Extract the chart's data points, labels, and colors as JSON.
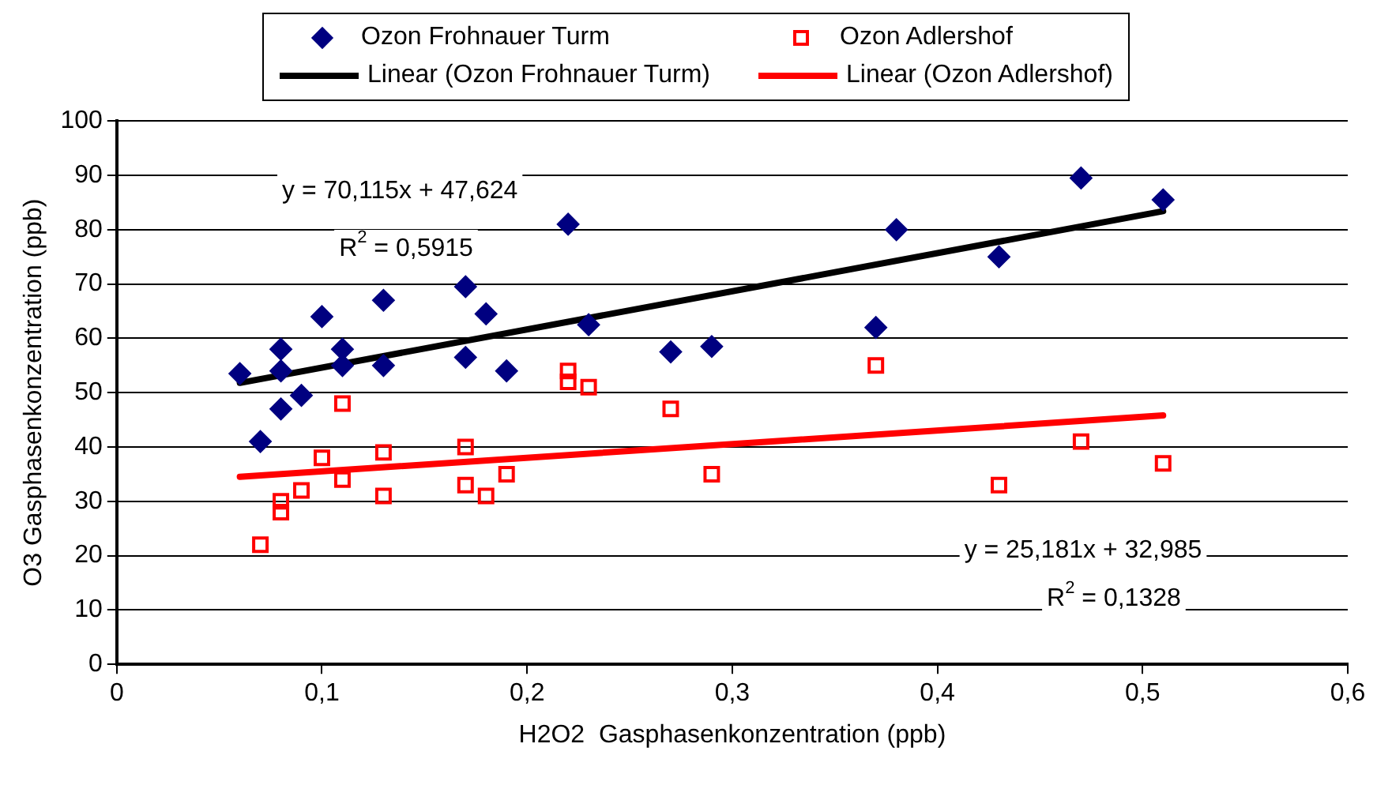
{
  "chart_data": {
    "type": "scatter",
    "xlabel": "H2O2  Gasphasenkonzentration (ppb)",
    "ylabel": "O3 Gasphasenkonzentration (ppb)",
    "xlim": [
      0,
      0.6
    ],
    "xticks": [
      0,
      {
        "value": 0.1,
        "label": "0,1"
      },
      {
        "value": 0.2,
        "label": "0,2"
      },
      {
        "value": 0.3,
        "label": "0,3"
      },
      {
        "value": 0.4,
        "label": "0,4"
      },
      {
        "value": 0.5,
        "label": "0,5"
      },
      {
        "value": 0.6,
        "label": "0,6"
      }
    ],
    "ylim": [
      0,
      100
    ],
    "yticks": [
      0,
      10,
      20,
      30,
      40,
      50,
      60,
      70,
      80,
      90,
      100
    ],
    "grid": "y",
    "legend": "top",
    "series": [
      {
        "name": "Ozon Frohnauer Turm",
        "type": "scatter",
        "marker": "diamond",
        "color": "#000080",
        "x": [
          0.06,
          0.07,
          0.08,
          0.08,
          0.08,
          0.09,
          0.1,
          0.11,
          0.11,
          0.13,
          0.13,
          0.17,
          0.17,
          0.18,
          0.19,
          0.22,
          0.23,
          0.27,
          0.29,
          0.37,
          0.38,
          0.43,
          0.47,
          0.51
        ],
        "values": [
          53.5,
          41,
          58,
          54,
          47,
          49.5,
          64,
          58,
          55,
          67,
          55,
          69.5,
          56.5,
          64.5,
          54,
          81,
          62.5,
          57.5,
          58.5,
          62,
          80,
          75,
          89.5,
          85.5
        ]
      },
      {
        "name": "Ozon Adlershof",
        "type": "scatter",
        "marker": "square",
        "color": "#ff0000",
        "x": [
          0.07,
          0.08,
          0.08,
          0.09,
          0.1,
          0.11,
          0.11,
          0.13,
          0.13,
          0.17,
          0.17,
          0.18,
          0.19,
          0.22,
          0.22,
          0.23,
          0.27,
          0.29,
          0.37,
          0.43,
          0.47,
          0.51
        ],
        "values": [
          22,
          30,
          28,
          32,
          38,
          48,
          34,
          39,
          31,
          40,
          33,
          31,
          35,
          54,
          52,
          51,
          47,
          35,
          55,
          33,
          41,
          37
        ]
      },
      {
        "name": "Linear (Ozon Frohnauer Turm)",
        "type": "line",
        "marker": "none",
        "color": "#000000",
        "x": [
          0.06,
          0.51
        ],
        "values": [
          51.8,
          83.4
        ]
      },
      {
        "name": "Linear (Ozon Adlershof)",
        "type": "line",
        "marker": "none",
        "color": "#ff0000",
        "x": [
          0.06,
          0.51
        ],
        "values": [
          34.5,
          45.8
        ]
      }
    ],
    "annotations": [
      "y = 70,115x + 47,624",
      "R$^{2}$ = 0,5915",
      "y = 25,181x + 32,985",
      "R$^{2}$ = 0,1328"
    ]
  }
}
